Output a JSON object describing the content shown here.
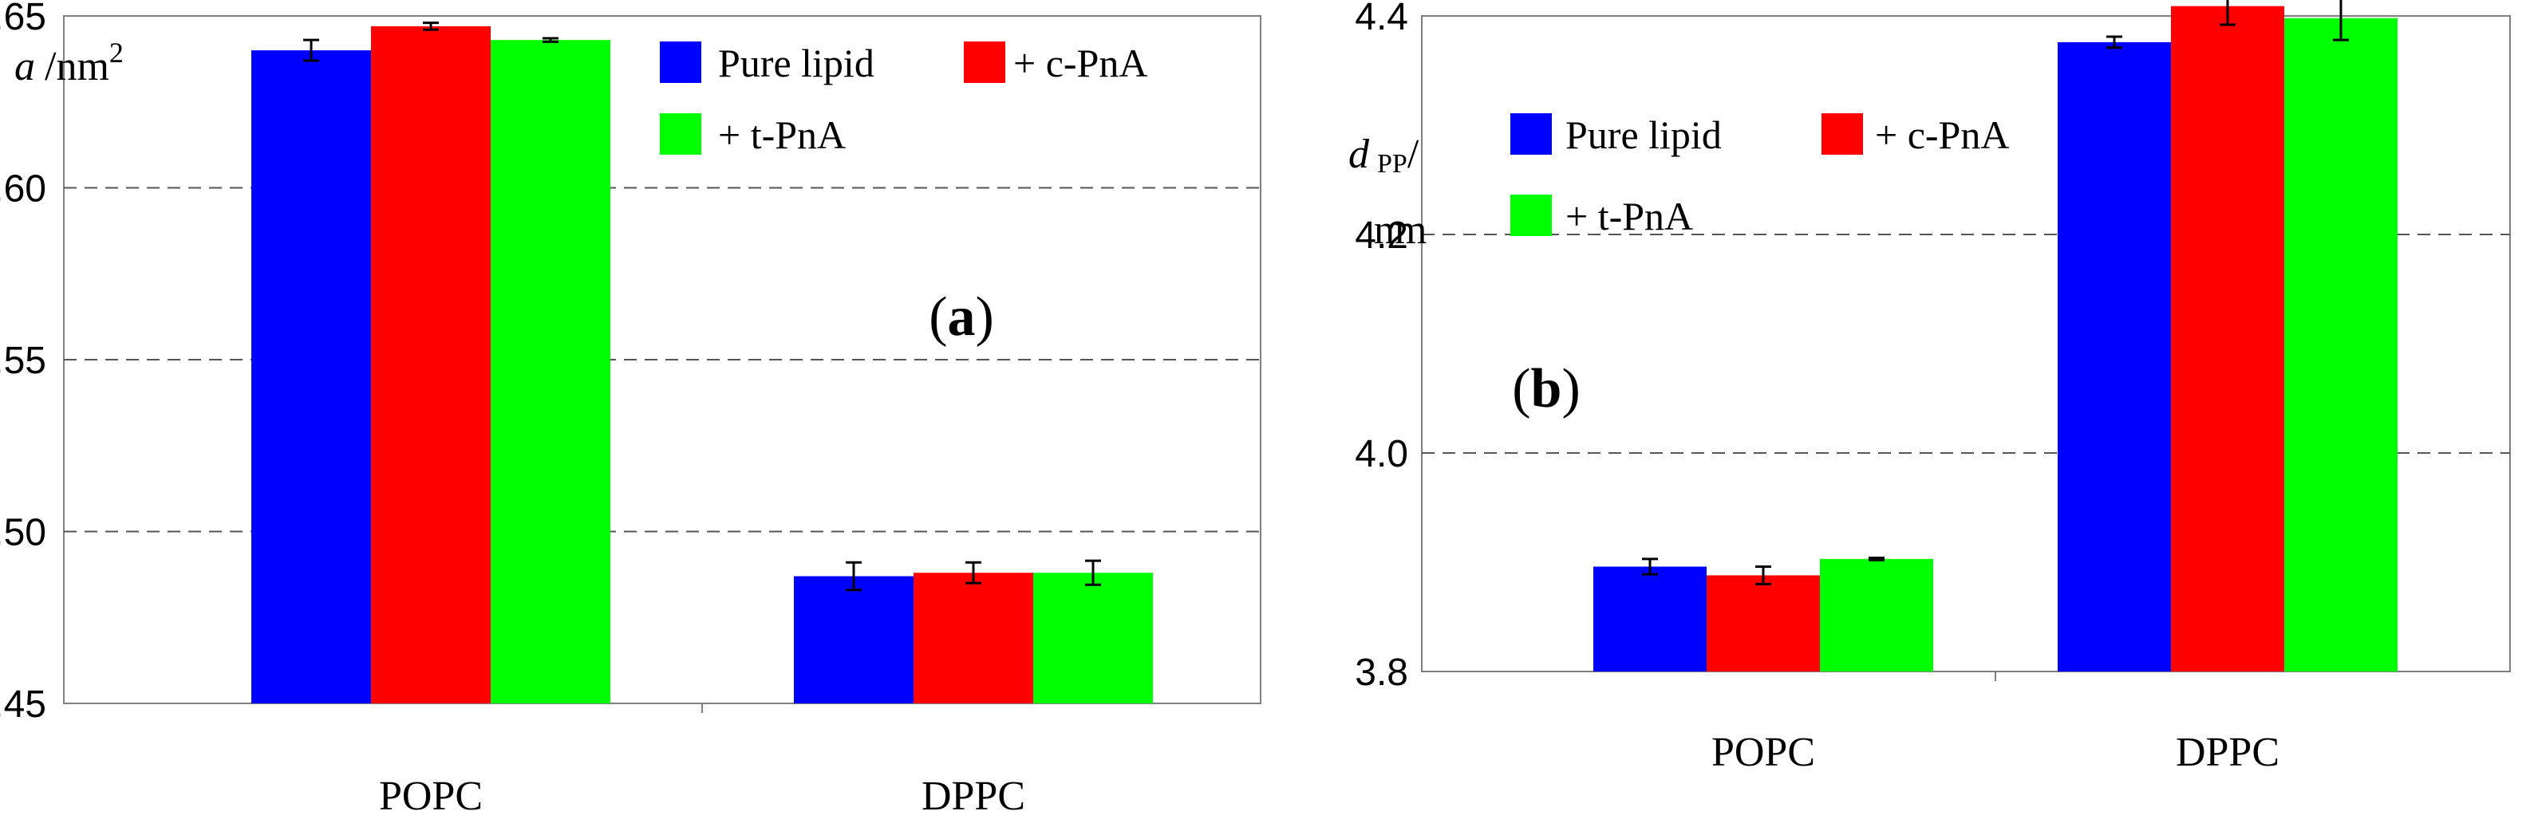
{
  "colors": {
    "pure": "#0000ff",
    "cpna": "#ff0000",
    "tpna": "#00ff00"
  },
  "chart_data": [
    {
      "type": "bar",
      "panel_label": "a",
      "ylabel_var": "a",
      "ylabel_unit": "/nm",
      "ylabel_sup": "2",
      "categories": [
        "POPC",
        "DPPC"
      ],
      "ylim": [
        0.45,
        0.65
      ],
      "yticks": [
        "0.45",
        "0.50",
        "0.55",
        "0.60",
        "0.65"
      ],
      "series": [
        {
          "name": "Pure lipid",
          "values": [
            0.64,
            0.487
          ],
          "errors": [
            0.003,
            0.004
          ]
        },
        {
          "name": "+ c-PnA",
          "values": [
            0.647,
            0.488
          ],
          "errors": [
            0.001,
            0.003
          ]
        },
        {
          "name": "+ t-PnA",
          "values": [
            0.643,
            0.488
          ],
          "errors": [
            0.0005,
            0.0035
          ]
        }
      ],
      "grid": "horizontal dashed",
      "legend_position": "top-right"
    },
    {
      "type": "bar",
      "panel_label": "b",
      "ylabel_var": "d",
      "ylabel_sub": "PP",
      "ylabel_slash": "/",
      "ylabel_unit": "nm",
      "categories": [
        "POPC",
        "DPPC"
      ],
      "ylim": [
        3.8,
        4.4
      ],
      "yticks": [
        "3.8",
        "4.0",
        "4.2",
        "4.4"
      ],
      "series": [
        {
          "name": "Pure lipid",
          "values": [
            3.896,
            4.376
          ],
          "errors": [
            0.007,
            0.005
          ]
        },
        {
          "name": "+ c-PnA",
          "values": [
            3.888,
            4.409
          ],
          "errors": [
            0.008,
            0.017
          ]
        },
        {
          "name": "+ t-PnA",
          "values": [
            3.903,
            4.398
          ],
          "errors": [
            0.001,
            0.02
          ]
        }
      ],
      "grid": "horizontal dashed",
      "legend_position": "top-left"
    }
  ]
}
